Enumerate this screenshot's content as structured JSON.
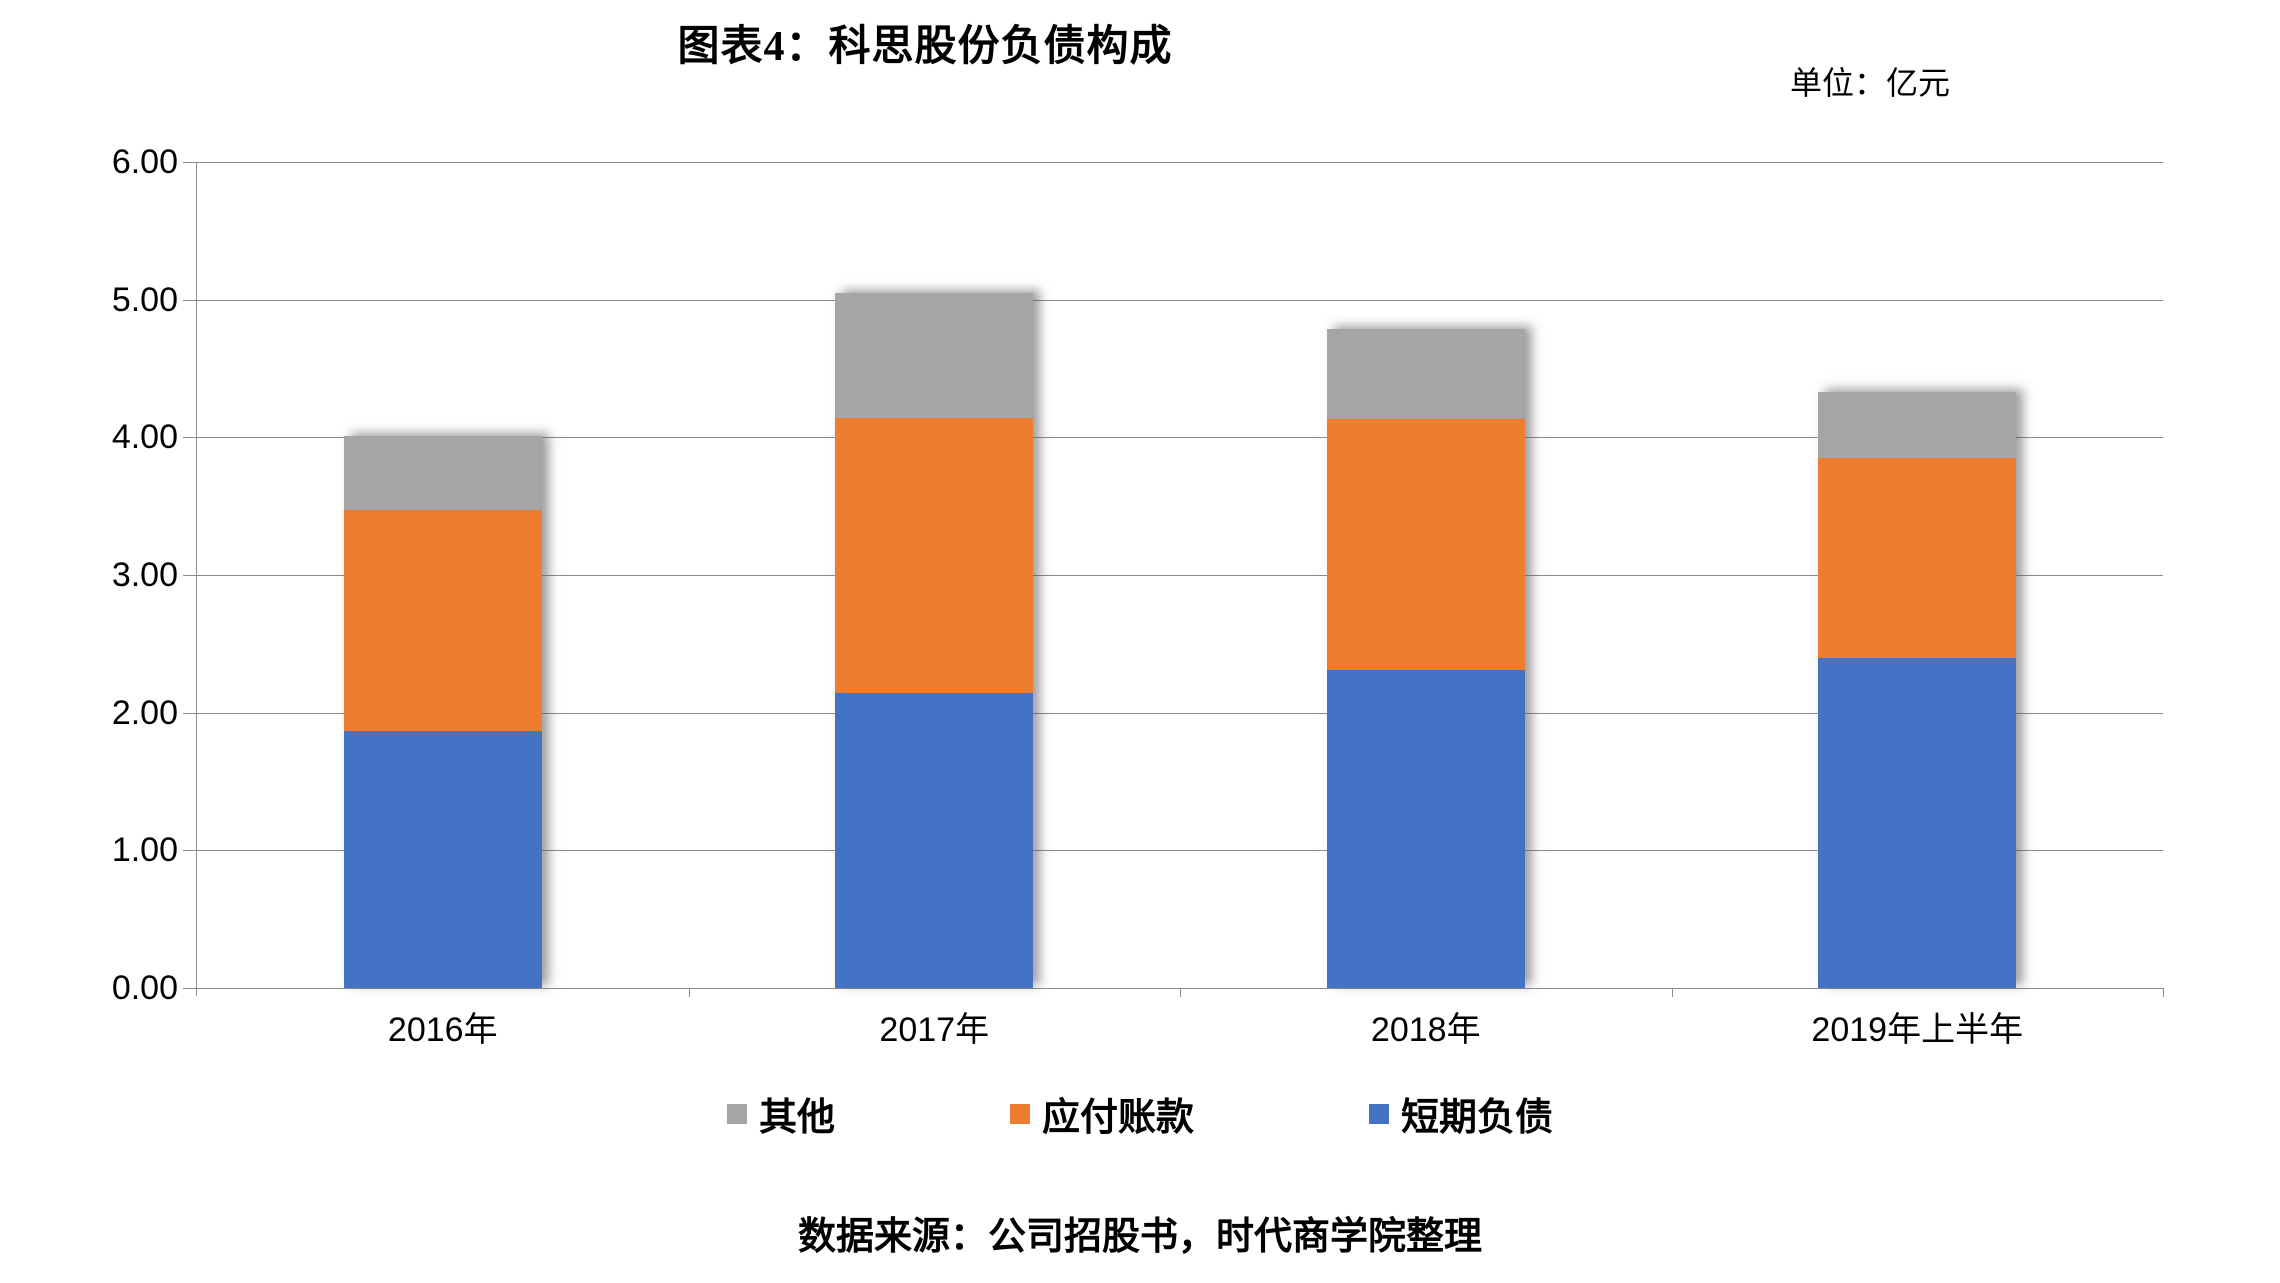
{
  "title": "图表4：科思股份负债构成",
  "unit_label": "单位：亿元",
  "source": "数据来源：公司招股书，时代商学院整理",
  "chart_data": {
    "type": "bar",
    "stacked": true,
    "title": "图表4：科思股份负债构成",
    "unit": "亿元",
    "categories": [
      "2016年",
      "2017年",
      "2018年",
      "2019年上半年"
    ],
    "series": [
      {
        "name": "短期负债",
        "color": "#4472C4",
        "values": [
          1.87,
          2.14,
          2.31,
          2.4
        ]
      },
      {
        "name": "应付账款",
        "color": "#ED7D31",
        "values": [
          1.6,
          2.0,
          1.82,
          1.45
        ]
      },
      {
        "name": "其他",
        "color": "#A5A5A5",
        "values": [
          0.54,
          0.91,
          0.66,
          0.48
        ]
      }
    ],
    "totals": [
      4.01,
      5.05,
      4.79,
      4.33
    ],
    "ylim": [
      0,
      6
    ],
    "y_tick_step": 1,
    "y_ticks": [
      "0.00",
      "1.00",
      "2.00",
      "3.00",
      "4.00",
      "5.00",
      "6.00"
    ],
    "grid": true,
    "legend_position": "bottom",
    "legend_order": [
      "其他",
      "应付账款",
      "短期负债"
    ]
  }
}
